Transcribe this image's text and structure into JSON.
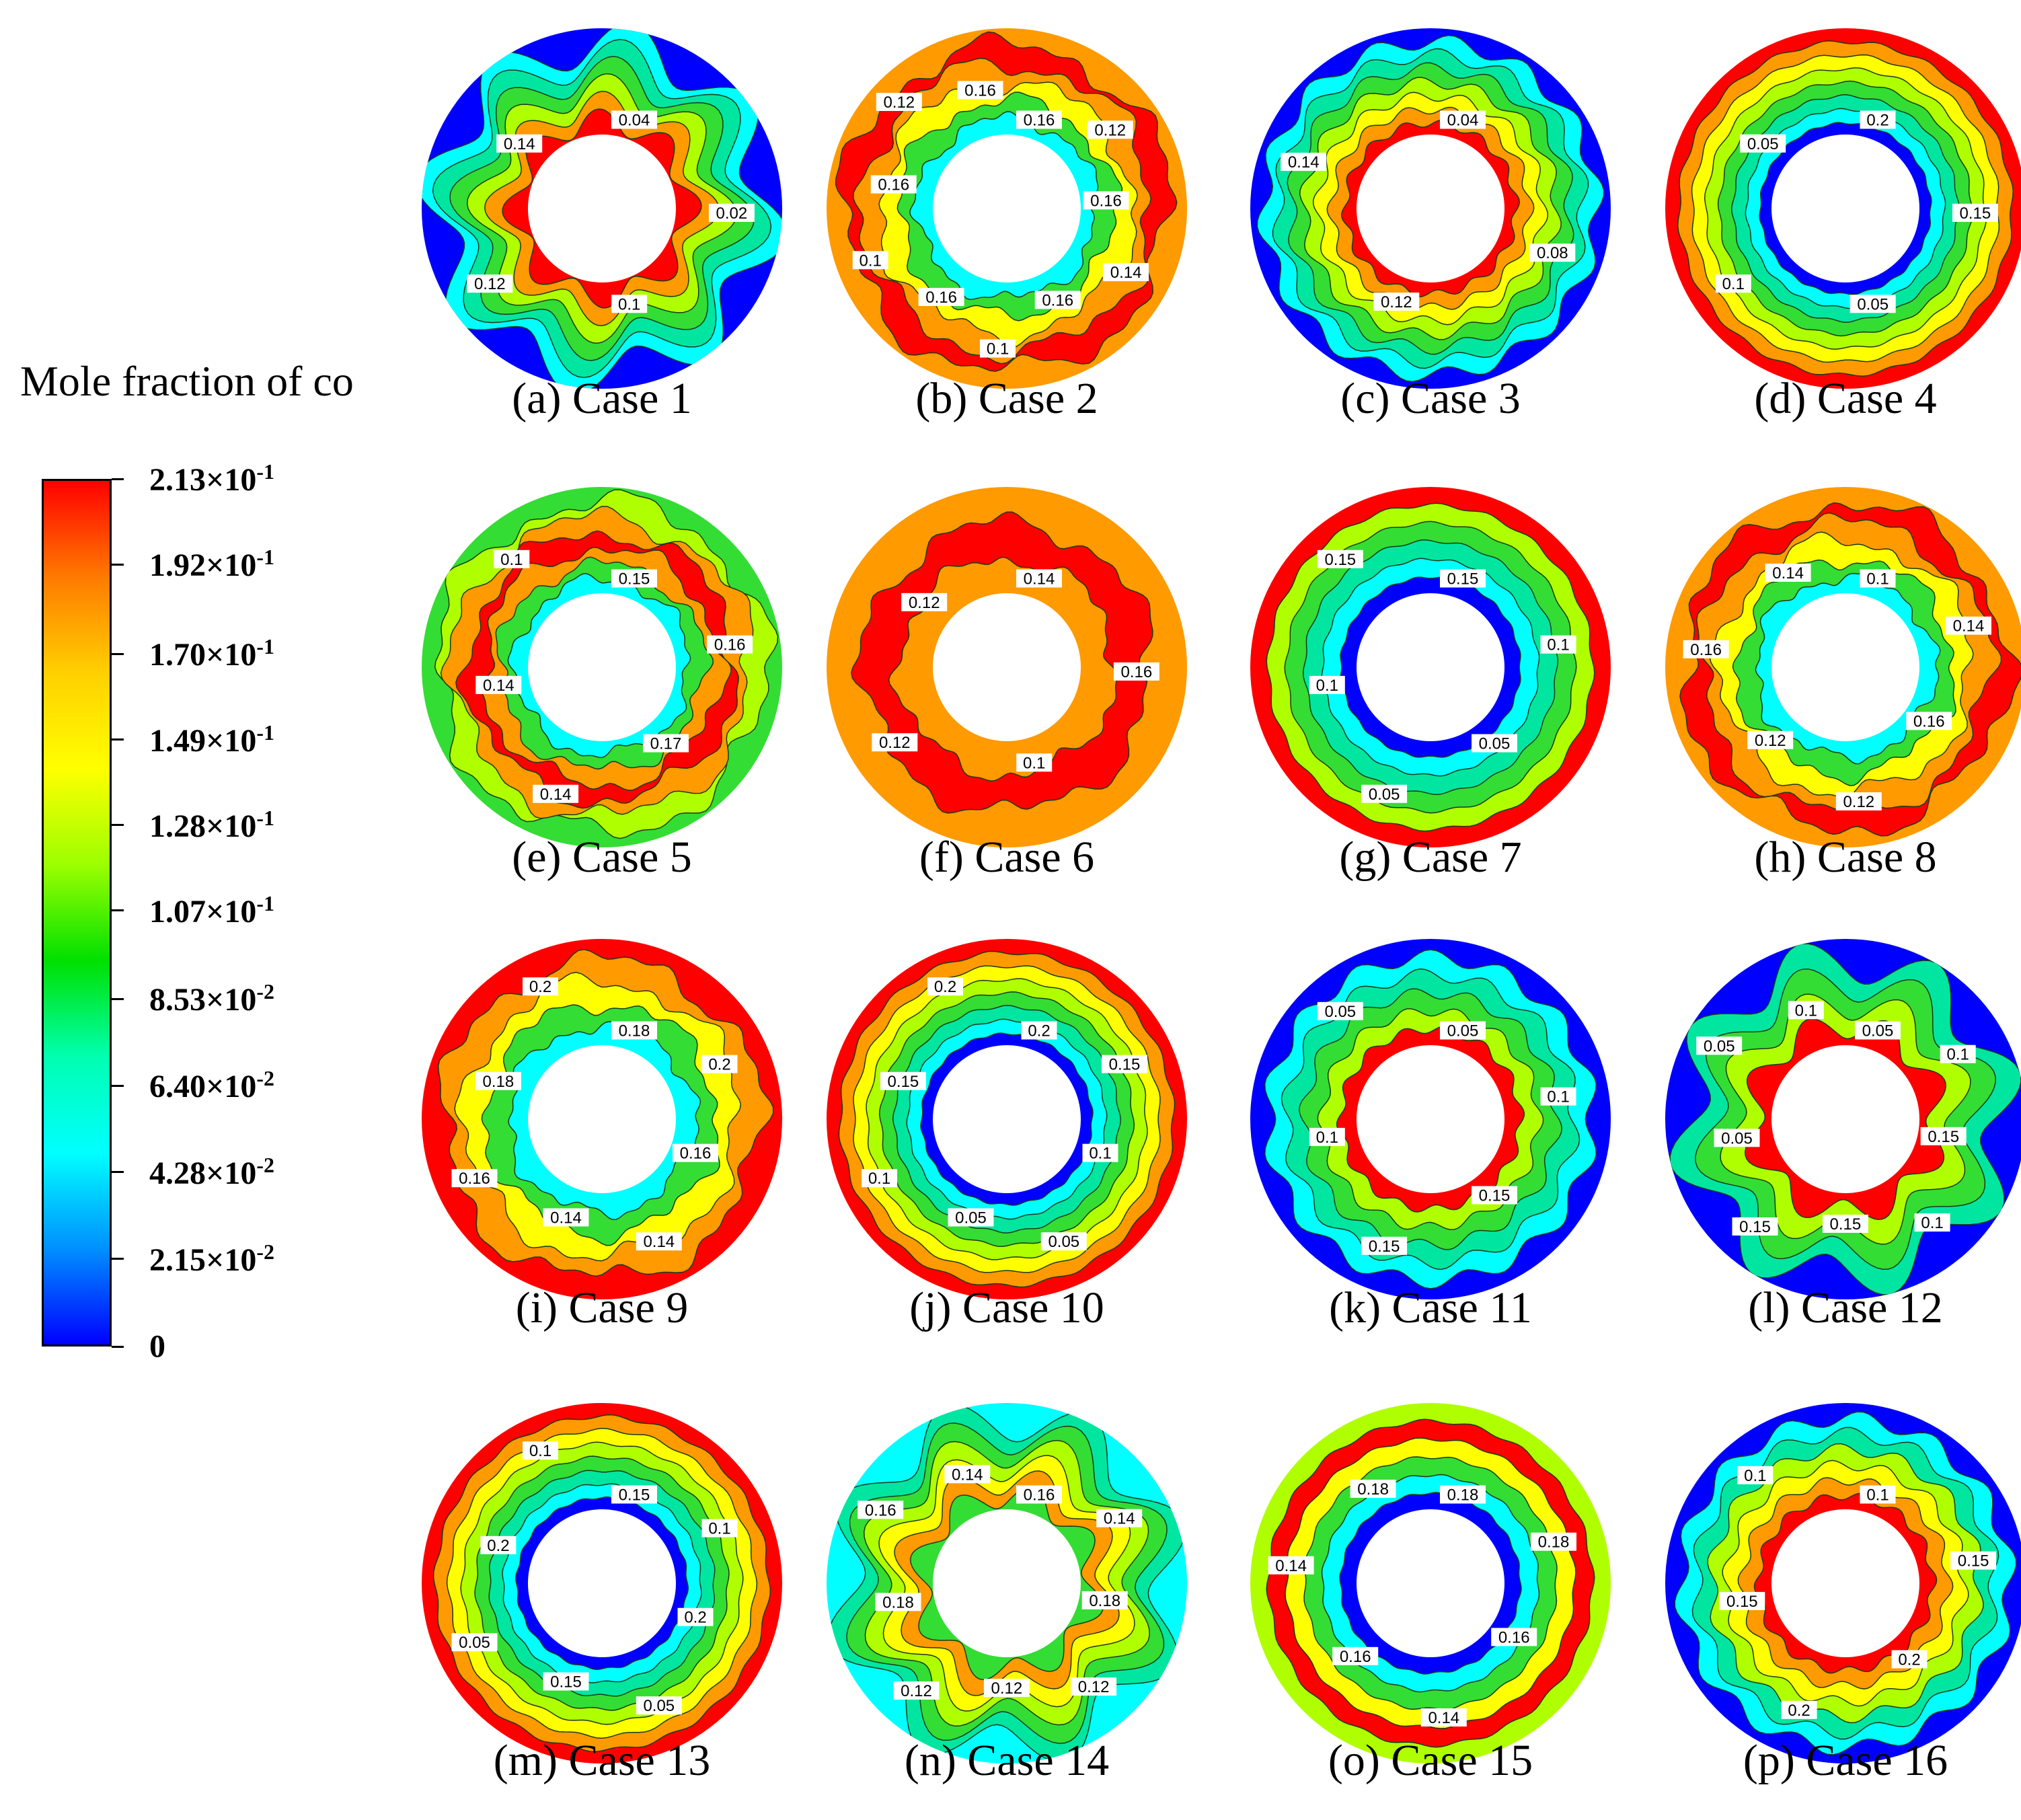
{
  "legend": {
    "title": "Mole fraction of co",
    "stops": [
      "#ff0000",
      "#ff7a00",
      "#ffd000",
      "#ffff00",
      "#9cff00",
      "#00e000",
      "#00ffb0",
      "#00ffff",
      "#0090ff",
      "#0000ff"
    ],
    "ticks": [
      {
        "mantissa": "2.13×10",
        "exp": "-1",
        "value": 0.213
      },
      {
        "mantissa": "1.92×10",
        "exp": "-1",
        "value": 0.192
      },
      {
        "mantissa": "1.70×10",
        "exp": "-1",
        "value": 0.17
      },
      {
        "mantissa": "1.49×10",
        "exp": "-1",
        "value": 0.149
      },
      {
        "mantissa": "1.28×10",
        "exp": "-1",
        "value": 0.128
      },
      {
        "mantissa": "1.07×10",
        "exp": "-1",
        "value": 0.107
      },
      {
        "mantissa": "8.53×10",
        "exp": "-2",
        "value": 0.0853
      },
      {
        "mantissa": "6.40×10",
        "exp": "-2",
        "value": 0.064
      },
      {
        "mantissa": "4.28×10",
        "exp": "-2",
        "value": 0.0428
      },
      {
        "mantissa": "2.15×10",
        "exp": "-2",
        "value": 0.0215
      },
      {
        "mantissa": "0",
        "exp": "",
        "value": 0
      }
    ]
  },
  "colors": {
    "red": "#ff0000",
    "orange": "#ff9a00",
    "yellow": "#ffff00",
    "lime": "#b0ff00",
    "green": "#33dd33",
    "teal": "#00e6a0",
    "cyan": "#00ffff",
    "blue": "#0000ff"
  },
  "panels": [
    {
      "caption": "(a) Case 1",
      "style": "star",
      "rings": [
        "blue",
        "cyan",
        "teal",
        "green",
        "lime",
        "orange",
        "red"
      ],
      "labels": [
        "0.04",
        "0.02",
        "0.1",
        "0.12",
        "0.14"
      ]
    },
    {
      "caption": "(b) Case 2",
      "style": "mottled",
      "rings": [
        "orange",
        "red",
        "orange",
        "yellow",
        "green",
        "cyan"
      ],
      "labels": [
        "0.16",
        "0.12",
        "0.16",
        "0.14",
        "0.16",
        "0.1",
        "0.16",
        "0.1",
        "0.16",
        "0.12",
        "0.16"
      ]
    },
    {
      "caption": "(c) Case 3",
      "style": "wavy",
      "rings": [
        "blue",
        "cyan",
        "teal",
        "green",
        "lime",
        "yellow",
        "orange",
        "red"
      ],
      "labels": [
        "0.04",
        "0.08",
        "0.12",
        "0.14"
      ]
    },
    {
      "caption": "(d) Case 4",
      "style": "ring",
      "rings": [
        "red",
        "orange",
        "yellow",
        "lime",
        "green",
        "teal",
        "cyan",
        "blue"
      ],
      "labels": [
        "0.2",
        "0.15",
        "0.05",
        "0.1",
        "0.05"
      ]
    },
    {
      "caption": "(e) Case 5",
      "style": "mottled",
      "rings": [
        "green",
        "lime",
        "orange",
        "red",
        "orange",
        "green",
        "cyan"
      ],
      "labels": [
        "0.15",
        "0.16",
        "0.17",
        "0.14",
        "0.14",
        "0.1"
      ]
    },
    {
      "caption": "(f) Case 6",
      "style": "mottled",
      "rings": [
        "orange",
        "red",
        "orange"
      ],
      "labels": [
        "0.14",
        "0.16",
        "0.1",
        "0.12",
        "0.12"
      ]
    },
    {
      "caption": "(g) Case 7",
      "style": "ring",
      "rings": [
        "red",
        "lime",
        "green",
        "teal",
        "cyan",
        "blue"
      ],
      "labels": [
        "0.15",
        "0.1",
        "0.05",
        "0.05",
        "0.1",
        "0.15"
      ]
    },
    {
      "caption": "(h) Case 8",
      "style": "mottled",
      "rings": [
        "orange",
        "red",
        "orange",
        "yellow",
        "green",
        "cyan"
      ],
      "labels": [
        "0.1",
        "0.14",
        "0.16",
        "0.12",
        "0.12",
        "0.16",
        "0.14"
      ]
    },
    {
      "caption": "(i) Case 9",
      "style": "mottled",
      "rings": [
        "red",
        "orange",
        "yellow",
        "green",
        "cyan"
      ],
      "labels": [
        "0.18",
        "0.2",
        "0.16",
        "0.14",
        "0.14",
        "0.16",
        "0.18",
        "0.2"
      ]
    },
    {
      "caption": "(j) Case 10",
      "style": "ring",
      "rings": [
        "red",
        "orange",
        "yellow",
        "lime",
        "green",
        "teal",
        "cyan",
        "blue"
      ],
      "labels": [
        "0.2",
        "0.15",
        "0.1",
        "0.05",
        "0.05",
        "0.1",
        "0.15",
        "0.2"
      ]
    },
    {
      "caption": "(k) Case 11",
      "style": "wavy",
      "rings": [
        "blue",
        "cyan",
        "teal",
        "green",
        "lime",
        "red"
      ],
      "labels": [
        "0.05",
        "0.1",
        "0.15",
        "0.15",
        "0.1",
        "0.05"
      ]
    },
    {
      "caption": "(l) Case 12",
      "style": "star",
      "rings": [
        "blue",
        "teal",
        "green",
        "lime",
        "red"
      ],
      "labels": [
        "0.05",
        "0.1",
        "0.15",
        "0.1",
        "0.15",
        "0.15",
        "0.05",
        "0.05",
        "0.1"
      ]
    },
    {
      "caption": "(m) Case 13",
      "style": "ring",
      "rings": [
        "red",
        "orange",
        "yellow",
        "lime",
        "green",
        "teal",
        "cyan",
        "blue"
      ],
      "labels": [
        "0.15",
        "0.1",
        "0.2",
        "0.05",
        "0.15",
        "0.05",
        "0.2",
        "0.1"
      ]
    },
    {
      "caption": "(n) Case 14",
      "style": "star",
      "rings": [
        "cyan",
        "teal",
        "green",
        "lime",
        "yellow",
        "orange",
        "green"
      ],
      "labels": [
        "0.16",
        "0.14",
        "0.18",
        "0.12",
        "0.12",
        "0.12",
        "0.18",
        "0.16",
        "0.14"
      ]
    },
    {
      "caption": "(o) Case 15",
      "style": "ring",
      "rings": [
        "lime",
        "red",
        "yellow",
        "green",
        "cyan",
        "blue"
      ],
      "labels": [
        "0.18",
        "0.18",
        "0.16",
        "0.14",
        "0.16",
        "0.14",
        "0.18"
      ]
    },
    {
      "caption": "(p) Case 16",
      "style": "wavy",
      "rings": [
        "blue",
        "cyan",
        "teal",
        "lime",
        "yellow",
        "orange",
        "red"
      ],
      "labels": [
        "0.1",
        "0.15",
        "0.2",
        "0.2",
        "0.15",
        "0.1"
      ]
    }
  ]
}
